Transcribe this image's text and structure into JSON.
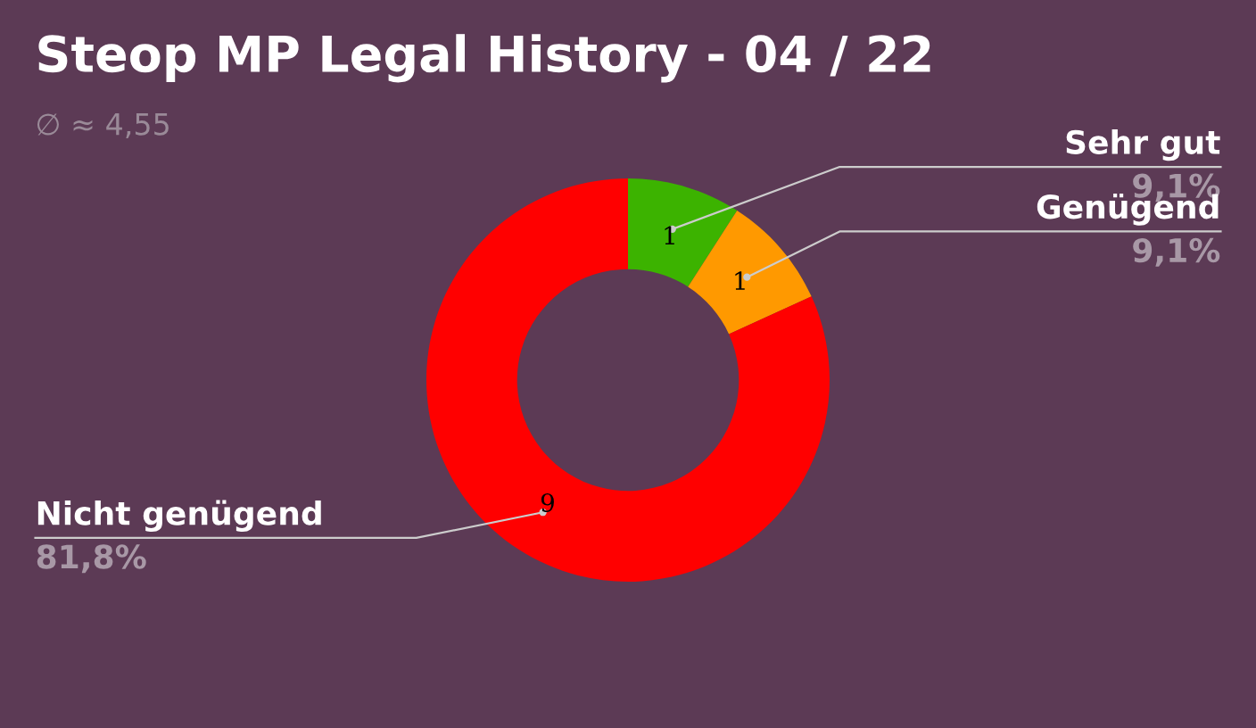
{
  "chart_data": {
    "type": "donut",
    "title": "Steop MP Legal History - 04 / 22",
    "subtitle": "∅ ≈ 4,55",
    "categories": [
      "Sehr gut",
      "Genügend",
      "Nicht genügend"
    ],
    "values": [
      9.1,
      9.1,
      81.8
    ],
    "annotations": [
      {
        "text": "1",
        "x": "Sehr gut"
      },
      {
        "text": "1",
        "x": "Genügend"
      },
      {
        "text": "9",
        "x": "Nicht genügend"
      }
    ],
    "colors": [
      "#3cb300",
      "#ff9900",
      "#ff0000"
    ],
    "value_labels": [
      "9,1%",
      "9,1%",
      "81,8%"
    ]
  }
}
